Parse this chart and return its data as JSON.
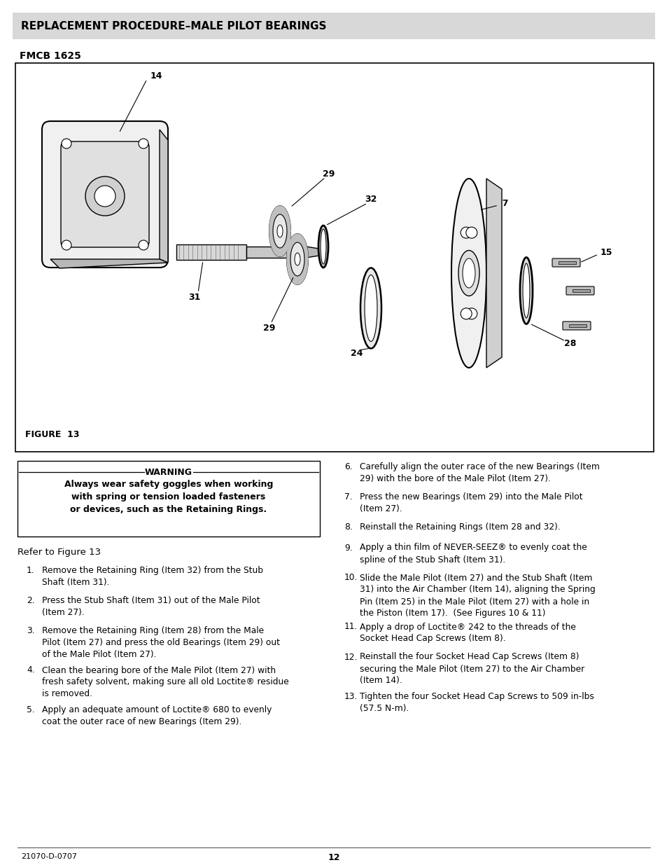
{
  "page_bg": "#ffffff",
  "header_bg": "#e0e0e0",
  "header_text": "REPLACEMENT PROCEDURE–MALE PILOT BEARINGS",
  "header_text_color": "#000000",
  "subtitle": "FMCB 1625",
  "figure_label": "FIGURE  13",
  "warning_title": "WARNING",
  "warning_body": "Always wear safety goggles when working\nwith spring or tension loaded fasteners\nor devices, such as the Retaining Rings.",
  "refer_text": "Refer to Figure 13",
  "left_steps": [
    "Remove the Retaining Ring (Item 32) from the Stub\nShaft (Item 31).",
    "Press the Stub Shaft (Item 31) out of the Male Pilot\n(Item 27).",
    "Remove the Retaining Ring (Item 28) from the Male\nPilot (Item 27) and press the old Bearings (Item 29) out\nof the Male Pilot (Item 27).",
    "Clean the bearing bore of the Male Pilot (Item 27) with\nfresh safety solvent, making sure all old Loctite® residue\nis removed.",
    "Apply an adequate amount of Loctite® 680 to evenly\ncoat the outer race of new Bearings (Item 29)."
  ],
  "right_steps": [
    "Carefully align the outer race of the new Bearings (Item\n29) with the bore of the Male Pilot (Item 27).",
    "Press the new Bearings (Item 29) into the Male Pilot\n(Item 27).",
    "Reinstall the Retaining Rings (Item 28 and 32).",
    "Apply a thin film of NEVER-SEEZ® to evenly coat the\nspline of the Stub Shaft (Item 31).",
    "Slide the Male Pilot (Item 27) and the Stub Shaft (Item\n31) into the Air Chamber (Item 14), aligning the Spring\nPin (Item 25) in the Male Pilot (Item 27) with a hole in\nthe Piston (Item 17).  (See Figures 10 & 11)",
    "Apply a drop of Loctite® 242 to the threads of the\nSocket Head Cap Screws (Item 8).",
    "Reinstall the four Socket Head Cap Screws (Item 8)\nsecuring the Male Pilot (Item 27) to the Air Chamber\n(Item 14).",
    "Tighten the four Socket Head Cap Screws to 509 in-lbs\n(57.5 N-m)."
  ],
  "footer_left": "21070-D-0707",
  "footer_center": "12"
}
